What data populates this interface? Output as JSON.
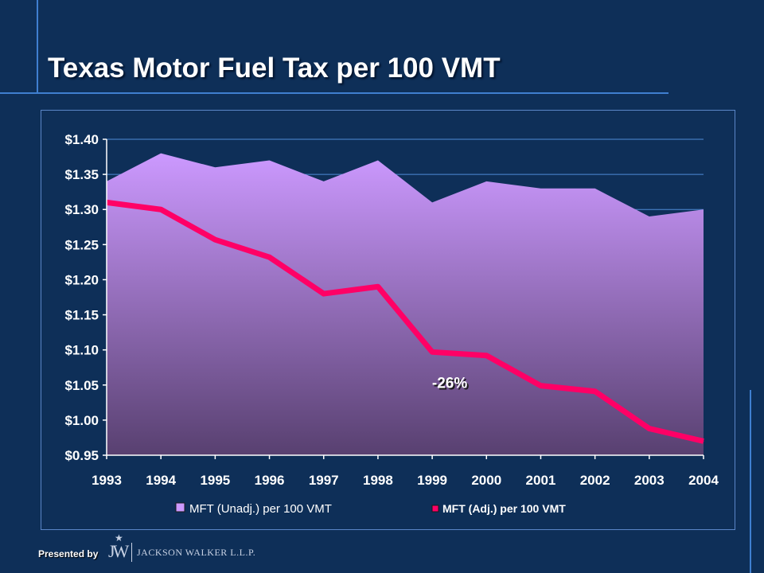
{
  "slide": {
    "title": "Texas Motor Fuel Tax per 100 VMT",
    "footer": {
      "presented_by": "Presented by",
      "logo_mark": "JW",
      "firm_name": "JACKSON WALKER L.L.P."
    }
  },
  "colors": {
    "background": "#0e2f58",
    "accent_line": "#3f7fd0",
    "area_top": "#cc99ff",
    "area_bottom": "#584070",
    "line_series": "#ff0066",
    "grid": "#4f8bd6"
  },
  "chart_data": {
    "type": "area",
    "title": "",
    "xlabel": "",
    "ylabel": "",
    "categories": [
      "1993",
      "1994",
      "1995",
      "1996",
      "1997",
      "1998",
      "1999",
      "2000",
      "2001",
      "2002",
      "2003",
      "2004"
    ],
    "ylim": [
      0.95,
      1.4
    ],
    "yticks": [
      "$0.95",
      "$1.00",
      "$1.05",
      "$1.10",
      "$1.15",
      "$1.20",
      "$1.25",
      "$1.30",
      "$1.35",
      "$1.40"
    ],
    "ytick_values": [
      0.95,
      1.0,
      1.05,
      1.1,
      1.15,
      1.2,
      1.25,
      1.3,
      1.35,
      1.4
    ],
    "grid": true,
    "legend_position": "bottom",
    "series": [
      {
        "name": "MFT (Unadj.) per 100 VMT",
        "type": "area",
        "values": [
          1.34,
          1.38,
          1.36,
          1.37,
          1.34,
          1.37,
          1.31,
          1.34,
          1.33,
          1.33,
          1.29,
          1.3
        ]
      },
      {
        "name": "MFT (Adj.) per 100 VMT",
        "type": "line",
        "values": [
          1.31,
          1.3,
          1.257,
          1.232,
          1.18,
          1.19,
          1.097,
          1.092,
          1.049,
          1.041,
          0.988,
          0.97
        ]
      }
    ],
    "annotations": [
      {
        "text": "-26%",
        "x": "1999",
        "y": 1.055
      }
    ]
  }
}
